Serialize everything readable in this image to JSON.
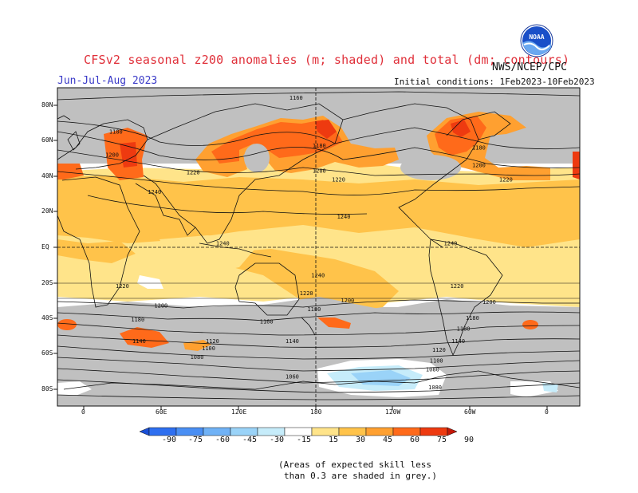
{
  "header": {
    "title": "CFSv2 seasonal z200 anomalies (m; shaded) and total (dm; contours)",
    "season": "Jun-Jul-Aug 2023",
    "agency": "NWS/NCEP/CPC",
    "initial_conditions": "Initial conditions: 1Feb2023-10Feb2023",
    "logo_text": "NOAA"
  },
  "map": {
    "latitude_labels": [
      "80N",
      "60N",
      "40N",
      "20N",
      "EQ",
      "20S",
      "40S",
      "60S",
      "80S"
    ],
    "longitude_labels": [
      "0",
      "60E",
      "120E",
      "180",
      "120W",
      "60W",
      "0"
    ],
    "contour_labels": [
      {
        "text": "1160",
        "lon": 165,
        "lat": 84
      },
      {
        "text": "1180",
        "lon": 25,
        "lat": 65
      },
      {
        "text": "1200",
        "lon": 22,
        "lat": 52
      },
      {
        "text": "1220",
        "lon": 85,
        "lat": 42
      },
      {
        "text": "1240",
        "lon": 55,
        "lat": 31
      },
      {
        "text": "1180",
        "lon": 183,
        "lat": 57
      },
      {
        "text": "1200",
        "lon": 183,
        "lat": 43
      },
      {
        "text": "1220",
        "lon": 198,
        "lat": 38
      },
      {
        "text": "1240",
        "lon": 202,
        "lat": 17
      },
      {
        "text": "1180",
        "lon": 307,
        "lat": 56
      },
      {
        "text": "1200",
        "lon": 307,
        "lat": 46
      },
      {
        "text": "1220",
        "lon": 328,
        "lat": 38
      },
      {
        "text": "1240",
        "lon": 108,
        "lat": 2
      },
      {
        "text": "1240",
        "lon": 285,
        "lat": 2
      },
      {
        "text": "1240",
        "lon": 182,
        "lat": -16
      },
      {
        "text": "1220",
        "lon": 30,
        "lat": -22
      },
      {
        "text": "1220",
        "lon": 173,
        "lat": -26
      },
      {
        "text": "1220",
        "lon": 290,
        "lat": -22
      },
      {
        "text": "1200",
        "lon": 60,
        "lat": -33
      },
      {
        "text": "1200",
        "lon": 205,
        "lat": -30
      },
      {
        "text": "1200",
        "lon": 315,
        "lat": -31
      },
      {
        "text": "1180",
        "lon": 42,
        "lat": -41
      },
      {
        "text": "1180",
        "lon": 179,
        "lat": -35
      },
      {
        "text": "1180",
        "lon": 302,
        "lat": -40
      },
      {
        "text": "1160",
        "lon": 142,
        "lat": -42
      },
      {
        "text": "1180",
        "lon": 295,
        "lat": -46
      },
      {
        "text": "1140",
        "lon": 43,
        "lat": -53
      },
      {
        "text": "1120",
        "lon": 100,
        "lat": -53
      },
      {
        "text": "1100",
        "lon": 97,
        "lat": -57
      },
      {
        "text": "1080",
        "lon": 88,
        "lat": -62
      },
      {
        "text": "1140",
        "lon": 162,
        "lat": -53
      },
      {
        "text": "1140",
        "lon": 291,
        "lat": -53
      },
      {
        "text": "1120",
        "lon": 276,
        "lat": -58
      },
      {
        "text": "1100",
        "lon": 274,
        "lat": -64
      },
      {
        "text": "1080",
        "lon": 271,
        "lat": -69
      },
      {
        "text": "1060",
        "lon": 162,
        "lat": -73
      },
      {
        "text": "1080",
        "lon": 273,
        "lat": -79
      }
    ]
  },
  "colorbar": {
    "labels": [
      "-90",
      "-75",
      "-60",
      "-45",
      "-30",
      "-15",
      "15",
      "30",
      "45",
      "60",
      "75",
      "90"
    ],
    "colors": [
      "#1a4fd6",
      "#2e6ff0",
      "#4a8ff4",
      "#70b2f6",
      "#9ad3f8",
      "#c6ecfa",
      "#ffffff",
      "#ffe48a",
      "#ffc34a",
      "#ffa030",
      "#ff6a1a",
      "#ee3a10",
      "#c41808"
    ]
  },
  "note": {
    "line1": "(Areas of expected skill less",
    "line2": "than 0.3 are shaded in grey.)"
  },
  "colors": {
    "grey": "#c0c0c0",
    "title_red": "#e0303a",
    "season_blue": "#3a3ac8"
  }
}
